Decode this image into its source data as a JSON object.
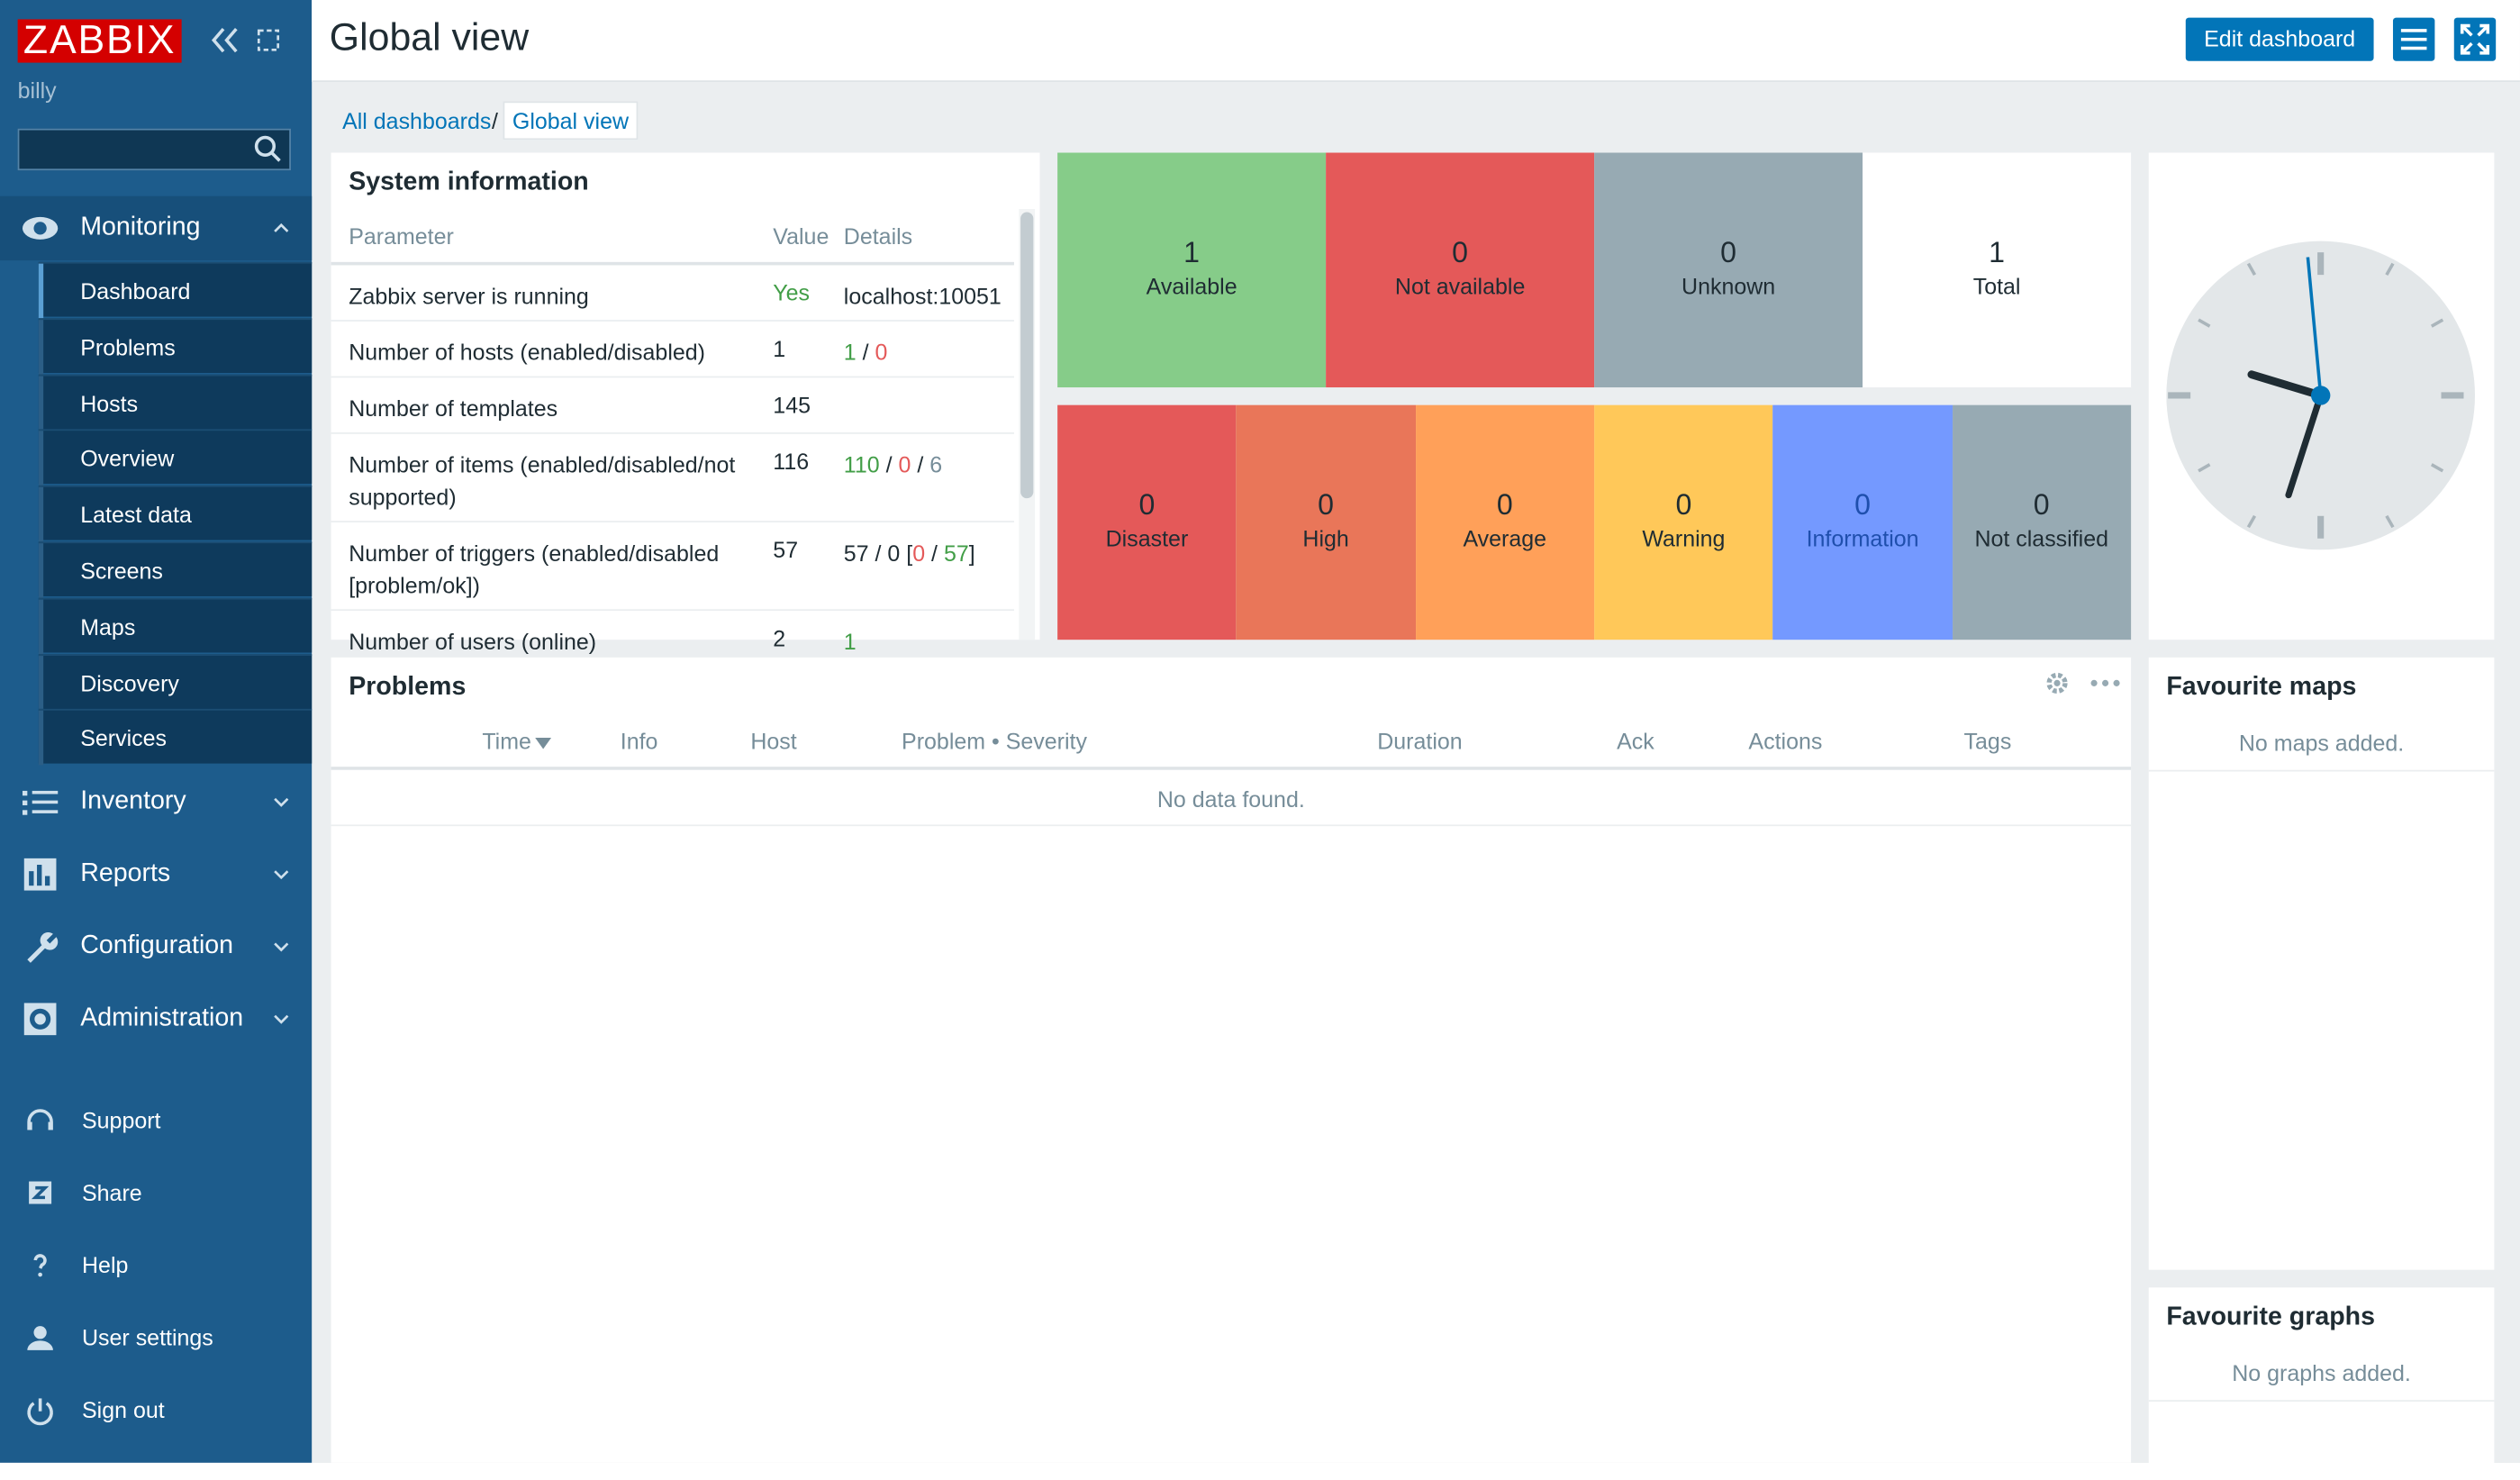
{
  "sidebar": {
    "logo": "ZABBIX",
    "user": "billy",
    "menu": [
      {
        "label": "Monitoring",
        "items": [
          "Dashboard",
          "Problems",
          "Hosts",
          "Overview",
          "Latest data",
          "Screens",
          "Maps",
          "Discovery",
          "Services"
        ]
      },
      {
        "label": "Inventory"
      },
      {
        "label": "Reports"
      },
      {
        "label": "Configuration"
      },
      {
        "label": "Administration"
      }
    ],
    "footer": [
      "Support",
      "Share",
      "Help",
      "User settings",
      "Sign out"
    ]
  },
  "header": {
    "title": "Global view",
    "button": "Edit dashboard"
  },
  "breadcrumbs": [
    "All dashboards",
    "Global view"
  ],
  "system_info": {
    "title": "System information",
    "columns": [
      "Parameter",
      "Value",
      "Details"
    ],
    "rows": [
      {
        "parameter": "Zabbix server is running",
        "value": "Yes",
        "value_class": "ok",
        "details": [
          {
            "text": "localhost:10051",
            "class": "plain"
          }
        ]
      },
      {
        "parameter": "Number of hosts (enabled/disabled)",
        "value": "1",
        "value_class": "plain",
        "details": [
          {
            "text": "1",
            "class": "ok"
          },
          {
            "text": " / ",
            "class": "plain"
          },
          {
            "text": "0",
            "class": "err"
          }
        ]
      },
      {
        "parameter": "Number of templates",
        "value": "145",
        "value_class": "plain",
        "details": []
      },
      {
        "parameter": "Number of items (enabled/disabled/not supported)",
        "value": "116",
        "value_class": "plain",
        "details": [
          {
            "text": "110",
            "class": "ok"
          },
          {
            "text": " / ",
            "class": "plain"
          },
          {
            "text": "0",
            "class": "err"
          },
          {
            "text": " / ",
            "class": "plain"
          },
          {
            "text": "6",
            "class": "dim"
          }
        ]
      },
      {
        "parameter": "Number of triggers (enabled/disabled [problem/ok])",
        "value": "57",
        "value_class": "plain",
        "details": [
          {
            "text": "57 / 0 [",
            "class": "plain"
          },
          {
            "text": "0",
            "class": "err"
          },
          {
            "text": " / ",
            "class": "plain"
          },
          {
            "text": "57",
            "class": "ok"
          },
          {
            "text": "]",
            "class": "plain"
          }
        ]
      },
      {
        "parameter": "Number of users (online)",
        "value": "2",
        "value_class": "plain",
        "details": [
          {
            "text": "1",
            "class": "ok"
          }
        ]
      }
    ]
  },
  "host_availability": [
    {
      "count": 1,
      "label": "Available",
      "color": "#86cc89"
    },
    {
      "count": 0,
      "label": "Not available",
      "color": "#e45959"
    },
    {
      "count": 0,
      "label": "Unknown",
      "color": "#97aab3"
    },
    {
      "count": 1,
      "label": "Total",
      "color": "#ffffff"
    }
  ],
  "problems_by_severity": [
    {
      "count": 0,
      "label": "Disaster",
      "color": "#e45959"
    },
    {
      "count": 0,
      "label": "High",
      "color": "#e97659"
    },
    {
      "count": 0,
      "label": "Average",
      "color": "#ffa059"
    },
    {
      "count": 0,
      "label": "Warning",
      "color": "#ffc859"
    },
    {
      "count": 0,
      "label": "Information",
      "color": "#7499ff"
    },
    {
      "count": 0,
      "label": "Not classified",
      "color": "#97aab3"
    }
  ],
  "problems": {
    "title": "Problems",
    "columns": [
      "Time",
      "Info",
      "Host",
      "Problem • Severity",
      "Duration",
      "Ack",
      "Actions",
      "Tags"
    ],
    "empty": "No data found."
  },
  "favourite_maps": {
    "title": "Favourite maps",
    "empty": "No maps added."
  },
  "favourite_graphs": {
    "title": "Favourite graphs",
    "empty": "No graphs added."
  }
}
